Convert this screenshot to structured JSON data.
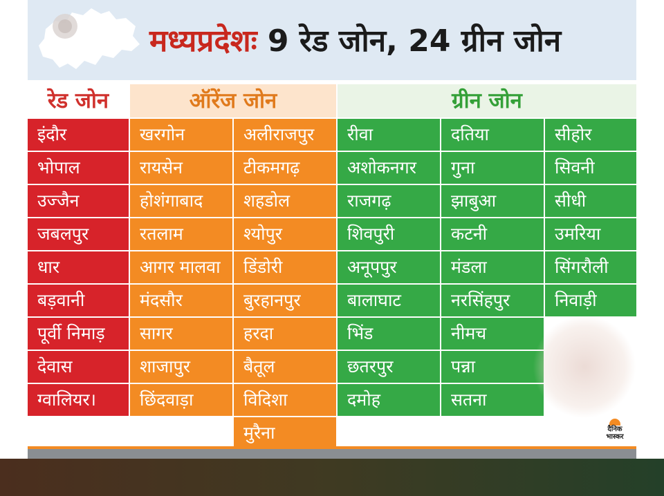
{
  "title": {
    "state": "मध्यप्रदेश",
    "separator": "ः",
    "red_count": "9 रेड जोन,",
    "green_count": "24 ग्रीन जोन"
  },
  "zones": {
    "red": {
      "label": "रेड जोन",
      "color": "#d7232a",
      "districts": [
        "इंदौर",
        "भोपाल",
        "उज्जैन",
        "जबलपुर",
        "धार",
        "बड़वानी",
        "पूर्वी निमाड़",
        "देवास",
        "ग्वालियर।"
      ]
    },
    "orange": {
      "label": "ऑरेंज जोन",
      "color": "#f38b23",
      "col1": [
        "खरगोन",
        "रायसेन",
        "होशंगाबाद",
        "रतलाम",
        "आगर मालवा",
        "मंदसौर",
        "सागर",
        "शाजापुर",
        "छिंदवाड़ा"
      ],
      "col2": [
        "अलीराजपुर",
        "टीकमगढ़",
        "शहडोल",
        "श्योपुर",
        "डिंडोरी",
        "बुरहानपुर",
        "हरदा",
        "बैतूल",
        "विदिशा",
        "मुरैना"
      ]
    },
    "green": {
      "label": "ग्रीन जोन",
      "color": "#35a946",
      "col1": [
        "रीवा",
        "अशोकनगर",
        "राजगढ़",
        "शिवपुरी",
        "अनूपपुर",
        "बालाघाट",
        "भिंड",
        "छतरपुर",
        "दमोह"
      ],
      "col2": [
        "दतिया",
        "गुना",
        "झाबुआ",
        "कटनी",
        "मंडला",
        "नरसिंहपुर",
        "नीमच",
        "पन्ना",
        "सतना"
      ],
      "col3": [
        "सीहोर",
        "सिवनी",
        "सीधी",
        "उमरिया",
        "सिंगरौली",
        "निवाड़ी"
      ]
    }
  },
  "logo": {
    "line1": "दैनिक",
    "line2": "भास्कर"
  }
}
